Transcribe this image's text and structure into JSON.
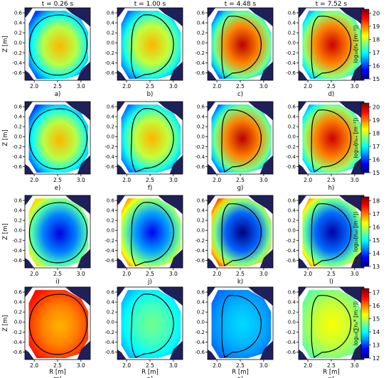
{
  "figure": {
    "column_titles": [
      "t = 0.26 s",
      "t = 1.00 s",
      "t = 4.48 s",
      "t = 7.52 s"
    ],
    "panel_letters": [
      "a)",
      "b)",
      "c)",
      "d)",
      "e)",
      "f)",
      "g)",
      "h)",
      "i)",
      "j)",
      "k)",
      "l)",
      "m)",
      "n)",
      "o)",
      "p)"
    ],
    "ylabel": "Z [m]",
    "xlabel": "R [m]",
    "colors": {
      "jet": [
        "#00007f",
        "#0000ff",
        "#007fff",
        "#00ffff",
        "#7fff7f",
        "#ffff00",
        "#ff7f00",
        "#ff0000",
        "#7f0000"
      ],
      "separatrix": "#000000",
      "wall": "#1f1f5a"
    }
  },
  "chart_data": [
    {
      "type": "heatmap",
      "title": "",
      "quantity": "log10(n_e [m^-3])",
      "colorbar_label": "log₁₀(nₑ [m⁻³])",
      "colorbar_ticks": [
        15,
        16,
        17,
        18,
        19,
        20
      ],
      "colorbar_range": [
        15,
        20.3
      ],
      "xlim": [
        1.8,
        3.2
      ],
      "ylim": [
        -0.75,
        0.7
      ],
      "x_ticks": [
        "2.0",
        "2.5",
        "3.0"
      ],
      "y_ticks": [
        "0.6",
        "0.4",
        "0.2",
        "0.0",
        "-0.2",
        "-0.4",
        "-0.6"
      ],
      "panels": [
        {
          "label": "a)",
          "time": "t = 0.26 s",
          "core_value": 18.7,
          "edge_value": 16.0
        },
        {
          "label": "b)",
          "time": "t = 1.00 s",
          "core_value": 18.7,
          "edge_value": 16.2
        },
        {
          "label": "c)",
          "time": "t = 4.48 s",
          "core_value": 20.0,
          "edge_value": 16.2
        },
        {
          "label": "d)",
          "time": "t = 7.52 s",
          "core_value": 19.9,
          "edge_value": 16.5
        }
      ]
    },
    {
      "type": "heatmap",
      "title": "",
      "quantity": "log10(n_a+ [m^-3])",
      "colorbar_label": "log₁₀(nₐ₊ [m⁻³])",
      "colorbar_ticks": [
        15,
        16,
        17,
        18,
        19,
        20
      ],
      "colorbar_range": [
        15,
        20.3
      ],
      "xlim": [
        1.8,
        3.2
      ],
      "ylim": [
        -0.75,
        0.7
      ],
      "x_ticks": [
        "2.0",
        "2.5",
        "3.0"
      ],
      "y_ticks": [
        "0.6",
        "0.4",
        "0.2",
        "0.0",
        "-0.2",
        "-0.4",
        "-0.6"
      ],
      "panels": [
        {
          "label": "e)",
          "time": "t = 0.26 s",
          "core_value": 18.7,
          "edge_value": 16.0
        },
        {
          "label": "f)",
          "time": "t = 1.00 s",
          "core_value": 18.7,
          "edge_value": 16.2
        },
        {
          "label": "g)",
          "time": "t = 4.48 s",
          "core_value": 20.0,
          "edge_value": 16.2
        },
        {
          "label": "h)",
          "time": "t = 7.52 s",
          "core_value": 19.9,
          "edge_value": 16.5
        }
      ]
    },
    {
      "type": "heatmap",
      "title": "",
      "quantity": "log10(n_a0 [m^-3])",
      "colorbar_label": "log₁₀(nₐ₀ [m⁻³])",
      "colorbar_ticks": [
        13,
        14,
        15,
        16,
        17,
        18
      ],
      "colorbar_range": [
        13,
        18.3
      ],
      "xlim": [
        1.8,
        3.2
      ],
      "ylim": [
        -0.75,
        0.7
      ],
      "x_ticks": [
        "2.0",
        "2.5",
        "3.0"
      ],
      "y_ticks": [
        "0.6",
        "0.4",
        "0.2",
        "0.0",
        "-0.2",
        "-0.4",
        "-0.6"
      ],
      "panels": [
        {
          "label": "i)",
          "time": "t = 0.26 s",
          "core_value": 13.5,
          "edge_value": 16.5
        },
        {
          "label": "j)",
          "time": "t = 1.00 s",
          "core_value": 13.6,
          "edge_value": 16.8
        },
        {
          "label": "k)",
          "time": "t = 4.48 s",
          "core_value": 13.0,
          "edge_value": 17.2
        },
        {
          "label": "l)",
          "time": "t = 7.52 s",
          "core_value": 13.2,
          "edge_value": 16.8
        }
      ]
    },
    {
      "type": "heatmap",
      "title": "",
      "quantity": "log10(sum n_a* [m^-3])",
      "colorbar_label": "log₁₀(∑nₐ* [m⁻³])",
      "colorbar_ticks": [
        12,
        13,
        14,
        15,
        16,
        17
      ],
      "colorbar_range": [
        12,
        17.3
      ],
      "xlim": [
        1.8,
        3.2
      ],
      "ylim": [
        -0.75,
        0.7
      ],
      "x_ticks": [
        "2.0",
        "2.5",
        "3.0"
      ],
      "y_ticks": [
        "0.6",
        "0.4",
        "0.2",
        "0.0",
        "-0.2",
        "-0.4",
        "-0.6"
      ],
      "panels": [
        {
          "label": "m)",
          "time": "t = 0.26 s",
          "core_value": 15.7,
          "edge_value": 16.6
        },
        {
          "label": "n)",
          "time": "t = 1.00 s",
          "core_value": 14.6,
          "edge_value": 13.6
        },
        {
          "label": "o)",
          "time": "t = 4.48 s",
          "core_value": 13.8,
          "edge_value": 13.2
        },
        {
          "label": "p)",
          "time": "t = 7.52 s",
          "core_value": 15.3,
          "edge_value": 14.4
        }
      ]
    }
  ]
}
